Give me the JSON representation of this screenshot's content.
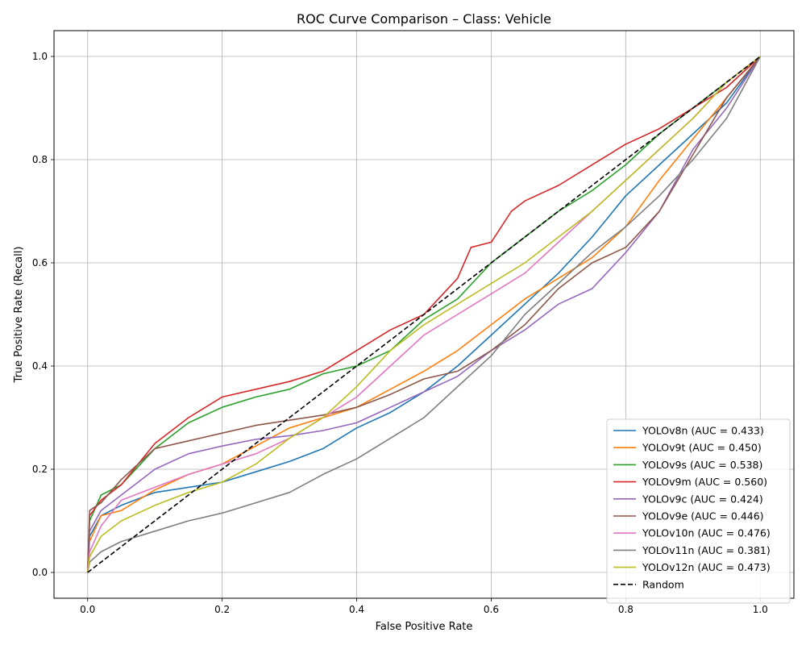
{
  "chart_data": {
    "type": "line",
    "title": "ROC Curve Comparison – Class: Vehicle",
    "xlabel": "False Positive Rate",
    "ylabel": "True Positive Rate (Recall)",
    "xlim": [
      -0.05,
      1.05
    ],
    "ylim": [
      -0.05,
      1.05
    ],
    "xticks": [
      0.0,
      0.2,
      0.4,
      0.6,
      0.8,
      1.0
    ],
    "yticks": [
      0.0,
      0.2,
      0.4,
      0.6,
      0.8,
      1.0
    ],
    "xtick_labels": [
      "0.0",
      "0.2",
      "0.4",
      "0.6",
      "0.8",
      "1.0"
    ],
    "ytick_labels": [
      "0.0",
      "0.2",
      "0.4",
      "0.6",
      "0.8",
      "1.0"
    ],
    "grid": true,
    "legend_position": "lower-right",
    "series": [
      {
        "name": "YOLOv8n (AUC = 0.433)",
        "color": "#1f77b4",
        "dash": "solid",
        "x": [
          0,
          0.003,
          0.02,
          0.05,
          0.1,
          0.15,
          0.2,
          0.25,
          0.3,
          0.35,
          0.4,
          0.45,
          0.5,
          0.55,
          0.6,
          0.65,
          0.7,
          0.75,
          0.8,
          0.85,
          0.9,
          0.95,
          1.0
        ],
        "y": [
          0,
          0.07,
          0.11,
          0.13,
          0.155,
          0.165,
          0.175,
          0.195,
          0.215,
          0.24,
          0.28,
          0.31,
          0.35,
          0.4,
          0.46,
          0.52,
          0.58,
          0.65,
          0.73,
          0.79,
          0.85,
          0.91,
          1.0
        ]
      },
      {
        "name": "YOLOv9t (AUC = 0.450)",
        "color": "#ff7f0e",
        "dash": "solid",
        "x": [
          0,
          0.003,
          0.02,
          0.05,
          0.1,
          0.15,
          0.2,
          0.25,
          0.3,
          0.35,
          0.4,
          0.45,
          0.5,
          0.55,
          0.6,
          0.65,
          0.7,
          0.75,
          0.8,
          0.85,
          0.9,
          0.95,
          1.0
        ],
        "y": [
          0,
          0.06,
          0.11,
          0.12,
          0.16,
          0.19,
          0.21,
          0.245,
          0.28,
          0.3,
          0.32,
          0.355,
          0.39,
          0.43,
          0.48,
          0.53,
          0.57,
          0.61,
          0.67,
          0.76,
          0.84,
          0.92,
          1.0
        ]
      },
      {
        "name": "YOLOv9s (AUC = 0.538)",
        "color": "#2ca02c",
        "dash": "solid",
        "x": [
          0,
          0.003,
          0.02,
          0.05,
          0.1,
          0.15,
          0.2,
          0.25,
          0.3,
          0.35,
          0.4,
          0.45,
          0.5,
          0.55,
          0.6,
          0.65,
          0.7,
          0.75,
          0.8,
          0.85,
          0.9,
          0.95,
          1.0
        ],
        "y": [
          0,
          0.1,
          0.15,
          0.17,
          0.24,
          0.29,
          0.32,
          0.34,
          0.355,
          0.385,
          0.4,
          0.43,
          0.49,
          0.53,
          0.6,
          0.65,
          0.7,
          0.74,
          0.79,
          0.85,
          0.9,
          0.95,
          1.0
        ]
      },
      {
        "name": "YOLOv9m (AUC = 0.560)",
        "color": "#d62728",
        "dash": "solid",
        "x": [
          0,
          0.003,
          0.02,
          0.05,
          0.1,
          0.15,
          0.2,
          0.25,
          0.3,
          0.35,
          0.4,
          0.45,
          0.5,
          0.55,
          0.57,
          0.6,
          0.63,
          0.65,
          0.7,
          0.75,
          0.8,
          0.85,
          0.9,
          0.95,
          1.0
        ],
        "y": [
          0,
          0.11,
          0.14,
          0.17,
          0.25,
          0.3,
          0.34,
          0.355,
          0.37,
          0.39,
          0.43,
          0.47,
          0.5,
          0.57,
          0.63,
          0.64,
          0.7,
          0.72,
          0.75,
          0.79,
          0.83,
          0.86,
          0.9,
          0.94,
          1.0
        ]
      },
      {
        "name": "YOLOv9c (AUC = 0.424)",
        "color": "#9467bd",
        "dash": "solid",
        "x": [
          0,
          0.003,
          0.02,
          0.05,
          0.1,
          0.15,
          0.2,
          0.25,
          0.3,
          0.35,
          0.4,
          0.45,
          0.5,
          0.55,
          0.6,
          0.65,
          0.7,
          0.75,
          0.8,
          0.85,
          0.9,
          0.95,
          1.0
        ],
        "y": [
          0,
          0.08,
          0.12,
          0.15,
          0.2,
          0.23,
          0.245,
          0.258,
          0.265,
          0.275,
          0.29,
          0.32,
          0.35,
          0.38,
          0.43,
          0.47,
          0.52,
          0.55,
          0.62,
          0.7,
          0.82,
          0.9,
          1.0
        ]
      },
      {
        "name": "YOLOv9e (AUC = 0.446)",
        "color": "#8c564b",
        "dash": "solid",
        "x": [
          0,
          0.003,
          0.02,
          0.05,
          0.1,
          0.15,
          0.2,
          0.25,
          0.3,
          0.35,
          0.4,
          0.45,
          0.5,
          0.55,
          0.6,
          0.65,
          0.7,
          0.75,
          0.8,
          0.85,
          0.9,
          0.95,
          1.0
        ],
        "y": [
          0,
          0.12,
          0.135,
          0.18,
          0.24,
          0.255,
          0.27,
          0.285,
          0.295,
          0.305,
          0.32,
          0.345,
          0.375,
          0.39,
          0.43,
          0.48,
          0.55,
          0.6,
          0.63,
          0.7,
          0.81,
          0.92,
          1.0
        ]
      },
      {
        "name": "YOLOv10n (AUC = 0.476)",
        "color": "#e377c2",
        "dash": "solid",
        "x": [
          0,
          0.003,
          0.02,
          0.05,
          0.1,
          0.15,
          0.2,
          0.25,
          0.3,
          0.35,
          0.4,
          0.45,
          0.5,
          0.55,
          0.6,
          0.65,
          0.7,
          0.75,
          0.8,
          0.85,
          0.9,
          0.95,
          1.0
        ],
        "y": [
          0,
          0.04,
          0.09,
          0.14,
          0.165,
          0.19,
          0.21,
          0.23,
          0.26,
          0.3,
          0.34,
          0.4,
          0.46,
          0.5,
          0.54,
          0.58,
          0.64,
          0.7,
          0.76,
          0.82,
          0.88,
          0.95,
          1.0
        ]
      },
      {
        "name": "YOLOv11n (AUC = 0.381)",
        "color": "#7f7f7f",
        "dash": "solid",
        "x": [
          0,
          0.003,
          0.02,
          0.05,
          0.1,
          0.15,
          0.2,
          0.25,
          0.3,
          0.35,
          0.4,
          0.45,
          0.5,
          0.55,
          0.6,
          0.65,
          0.7,
          0.75,
          0.8,
          0.85,
          0.9,
          0.95,
          1.0
        ],
        "y": [
          0,
          0.02,
          0.04,
          0.06,
          0.08,
          0.1,
          0.115,
          0.135,
          0.155,
          0.19,
          0.22,
          0.26,
          0.3,
          0.36,
          0.42,
          0.5,
          0.56,
          0.62,
          0.67,
          0.73,
          0.8,
          0.88,
          1.0
        ]
      },
      {
        "name": "YOLOv12n (AUC = 0.473)",
        "color": "#bcbd22",
        "dash": "solid",
        "x": [
          0,
          0.003,
          0.02,
          0.05,
          0.1,
          0.15,
          0.2,
          0.25,
          0.3,
          0.35,
          0.4,
          0.45,
          0.5,
          0.55,
          0.6,
          0.65,
          0.7,
          0.75,
          0.8,
          0.85,
          0.9,
          0.95,
          1.0
        ],
        "y": [
          0,
          0.03,
          0.07,
          0.1,
          0.13,
          0.155,
          0.175,
          0.21,
          0.26,
          0.3,
          0.36,
          0.43,
          0.48,
          0.52,
          0.56,
          0.6,
          0.65,
          0.7,
          0.76,
          0.82,
          0.88,
          0.95,
          1.0
        ]
      },
      {
        "name": "Random",
        "color": "#000000",
        "dash": "dashed",
        "x": [
          0,
          1
        ],
        "y": [
          0,
          1
        ]
      }
    ]
  }
}
